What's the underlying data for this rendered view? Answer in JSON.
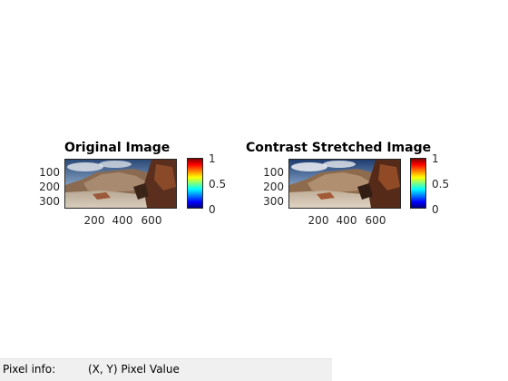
{
  "panels": [
    {
      "title": "Original Image",
      "y_ticks": [
        "100",
        "200",
        "300"
      ],
      "x_ticks": [
        "200",
        "400",
        "600"
      ],
      "colorbar_ticks": [
        "1",
        "0.5",
        "0"
      ]
    },
    {
      "title": "Contrast Stretched Image",
      "y_ticks": [
        "100",
        "200",
        "300"
      ],
      "x_ticks": [
        "200",
        "400",
        "600"
      ],
      "colorbar_ticks": [
        "1",
        "0.5",
        "0"
      ]
    }
  ],
  "colormap": "jet",
  "statusbar": {
    "label": "Pixel info:",
    "value": "(X, Y)  Pixel Value"
  }
}
